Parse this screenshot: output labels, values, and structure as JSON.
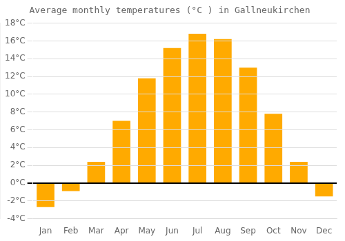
{
  "chart_data": {
    "type": "bar",
    "title": "Average monthly temperatures (°C ) in Gallneukirchen",
    "categories": [
      "Jan",
      "Feb",
      "Mar",
      "Apr",
      "May",
      "Jun",
      "Jul",
      "Aug",
      "Sep",
      "Oct",
      "Nov",
      "Dec"
    ],
    "values": [
      -2.7,
      -0.9,
      2.4,
      7.0,
      11.8,
      15.2,
      16.8,
      16.2,
      13.0,
      7.8,
      2.4,
      -1.5
    ],
    "color": "#FFAA00",
    "ylim": [
      -4,
      18
    ],
    "yticks": [
      {
        "value": -4,
        "label": "-4°C"
      },
      {
        "value": -2,
        "label": "-2°C"
      },
      {
        "value": 0,
        "label": "0°C"
      },
      {
        "value": 2,
        "label": "2°C"
      },
      {
        "value": 4,
        "label": "4°C"
      },
      {
        "value": 6,
        "label": "6°C"
      },
      {
        "value": 8,
        "label": "8°C"
      },
      {
        "value": 10,
        "label": "10°C"
      },
      {
        "value": 12,
        "label": "12°C"
      },
      {
        "value": 14,
        "label": "14°C"
      },
      {
        "value": 16,
        "label": "16°C"
      },
      {
        "value": 18,
        "label": "18°C"
      }
    ],
    "grid": true
  }
}
